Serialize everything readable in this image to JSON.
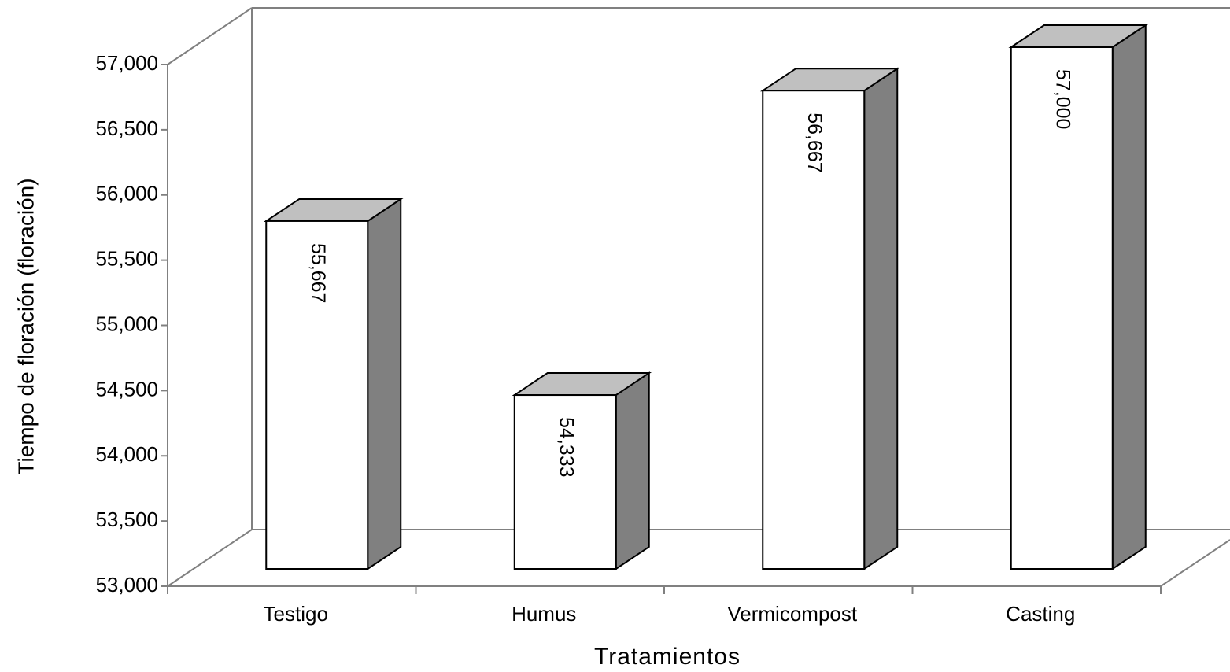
{
  "chart_data": {
    "type": "bar3d",
    "y_label": "Tiempo de floración (floración)",
    "x_label": "Tratamientos",
    "categories": [
      "Testigo",
      "Humus",
      "Vermicompost",
      "Casting"
    ],
    "values": [
      55.667,
      54.333,
      56.667,
      57
    ],
    "value_labels": [
      "55,667",
      "54,333",
      "56,667",
      "57,000"
    ],
    "color": "#ffffff",
    "top_color": "#c0c0c0",
    "side_color": "#808080",
    "ylim": [
      53,
      57
    ],
    "yticks": [
      {
        "value": 53,
        "label": "53,000"
      },
      {
        "value": 53.5,
        "label": "53,500"
      },
      {
        "value": 54,
        "label": "54,000"
      },
      {
        "value": 54.5,
        "label": "54,500"
      },
      {
        "value": 55,
        "label": "55,000"
      },
      {
        "value": 55.5,
        "label": "55,500"
      },
      {
        "value": 56,
        "label": "56,000"
      },
      {
        "value": 56.5,
        "label": "56,500"
      },
      {
        "value": 57,
        "label": "57,000"
      }
    ],
    "grid": false
  }
}
